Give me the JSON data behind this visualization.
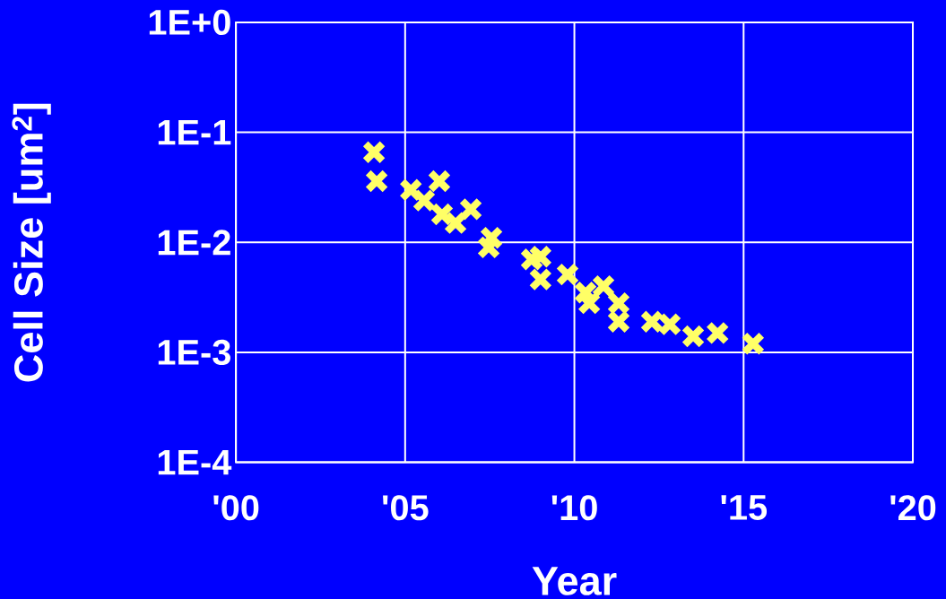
{
  "chart_data": {
    "type": "scatter",
    "xlabel": "Year",
    "ylabel": "Cell Size [um$^{2}$]",
    "x": [
      2004.08,
      2004.16,
      2005.17,
      2006.01,
      2005.56,
      2006.09,
      2006.94,
      2006.49,
      2007.55,
      2007.47,
      2008.74,
      2009.0,
      2009.0,
      2009.8,
      2010.33,
      2010.86,
      2010.44,
      2011.31,
      2011.31,
      2012.29,
      2012.82,
      2013.51,
      2014.23,
      2015.28
    ],
    "values": [
      0.066,
      0.036,
      0.03,
      0.036,
      0.024,
      0.018,
      0.02,
      0.015,
      0.011,
      0.009,
      0.007,
      0.0074,
      0.0046,
      0.0051,
      0.0035,
      0.004,
      0.0028,
      0.0028,
      0.0019,
      0.0019,
      0.0018,
      0.0014,
      0.0015,
      0.0012
    ],
    "color": "#ffff66",
    "marker": "cross",
    "log": "y",
    "grid": true,
    "xlim": [
      2000,
      2020
    ],
    "ylim": [
      0.0001,
      1
    ],
    "xticks": [
      {
        "value": 2000,
        "label": "'00"
      },
      {
        "value": 2005,
        "label": "'05"
      },
      {
        "value": 2010,
        "label": "'10"
      },
      {
        "value": 2015,
        "label": "'15"
      },
      {
        "value": 2020,
        "label": "'20"
      }
    ],
    "yticks": [
      {
        "value": 0.0001,
        "label": "1E-4"
      },
      {
        "value": 0.001,
        "label": "1E-3"
      },
      {
        "value": 0.01,
        "label": "1E-2"
      },
      {
        "value": 0.1,
        "label": "1E-1"
      },
      {
        "value": 1,
        "label": "1E+0"
      }
    ]
  }
}
